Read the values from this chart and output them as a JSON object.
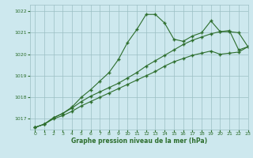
{
  "bg_color": "#cde8ee",
  "grid_color": "#9bbfc4",
  "line_color": "#2d6e2d",
  "xlabel": "Graphe pression niveau de la mer (hPa)",
  "ylim": [
    1016.5,
    1022.3
  ],
  "xlim": [
    -0.5,
    23
  ],
  "yticks": [
    1017,
    1018,
    1019,
    1020,
    1021,
    1022
  ],
  "xticks": [
    0,
    1,
    2,
    3,
    4,
    5,
    6,
    7,
    8,
    9,
    10,
    11,
    12,
    13,
    14,
    15,
    16,
    17,
    18,
    19,
    20,
    21,
    22,
    23
  ],
  "line1_x": [
    0,
    1,
    2,
    3,
    4,
    5,
    6,
    7,
    8,
    9,
    10,
    11,
    12,
    13,
    14,
    15,
    16,
    17,
    18,
    19,
    20,
    21,
    22,
    23
  ],
  "line1_y": [
    1016.6,
    1016.75,
    1017.05,
    1017.25,
    1017.55,
    1018.0,
    1018.35,
    1018.75,
    1019.15,
    1019.75,
    1020.55,
    1021.15,
    1021.85,
    1021.85,
    1021.45,
    1020.7,
    1020.6,
    1020.85,
    1021.0,
    1021.55,
    1021.05,
    1021.05,
    1021.0,
    1020.35
  ],
  "line2_x": [
    0,
    1,
    2,
    3,
    4,
    5,
    6,
    7,
    8,
    9,
    10,
    11,
    12,
    13,
    14,
    15,
    16,
    17,
    18,
    19,
    20,
    21,
    22,
    23
  ],
  "line2_y": [
    1016.6,
    1016.75,
    1017.05,
    1017.25,
    1017.5,
    1017.8,
    1018.05,
    1018.25,
    1018.45,
    1018.65,
    1018.9,
    1019.15,
    1019.45,
    1019.7,
    1019.95,
    1020.2,
    1020.45,
    1020.65,
    1020.8,
    1020.95,
    1021.05,
    1021.1,
    1020.2,
    1020.35
  ],
  "line3_x": [
    0,
    1,
    2,
    3,
    4,
    5,
    6,
    7,
    8,
    9,
    10,
    11,
    12,
    13,
    14,
    15,
    16,
    17,
    18,
    19,
    20,
    21,
    22,
    23
  ],
  "line3_y": [
    1016.6,
    1016.75,
    1017.0,
    1017.15,
    1017.35,
    1017.6,
    1017.8,
    1018.0,
    1018.2,
    1018.4,
    1018.6,
    1018.8,
    1019.0,
    1019.2,
    1019.45,
    1019.65,
    1019.8,
    1019.95,
    1020.05,
    1020.15,
    1020.0,
    1020.05,
    1020.1,
    1020.35
  ]
}
